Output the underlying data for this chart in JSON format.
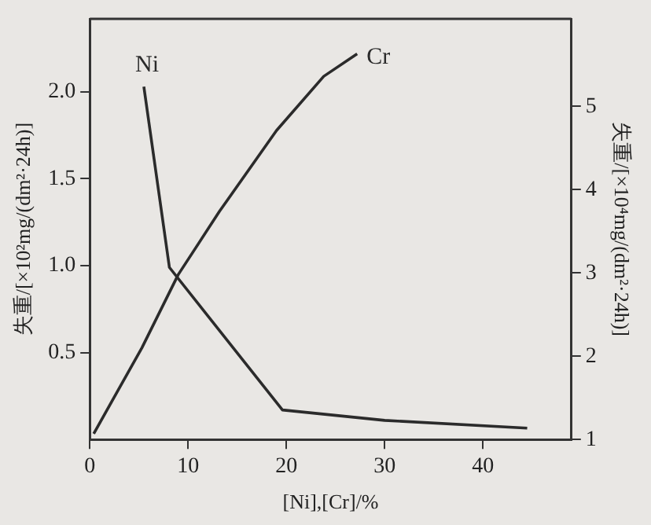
{
  "chart_data": {
    "type": "line",
    "xlabel": "[Ni],[Cr]/%",
    "ylabel": "失重/[×10²mg/(dm²·24h)]",
    "y2label": "失重/[×10⁴mg/(dm²·24h)]",
    "series": [
      {
        "name": "Ni",
        "color": "#2b2b2b",
        "x": [
          5.5,
          8.1,
          19.6,
          30,
          44.5
        ],
        "values": [
          2.03,
          0.99,
          0.17,
          0.11,
          0.065
        ]
      },
      {
        "name": "Cr",
        "color": "#2b2b2b",
        "axis": "y2",
        "x": [
          0.4,
          5.3,
          9,
          13.2,
          19,
          23.8,
          27.2
        ],
        "values": [
          1.07,
          2.1,
          2.98,
          3.74,
          4.71,
          5.36,
          5.63
        ]
      }
    ],
    "xlim": [
      0,
      49
    ],
    "xticks": [
      0,
      10,
      20,
      30,
      40
    ],
    "ylim": [
      0,
      2.42
    ],
    "yticks": [
      {
        "value": 0.5,
        "label": "0.5"
      },
      {
        "value": 1,
        "label": "1.0"
      },
      {
        "value": 1.5,
        "label": "1.5"
      },
      {
        "value": 2,
        "label": "2.0"
      }
    ],
    "y2lim": [
      1,
      6.05
    ],
    "y2ticks": [
      1,
      2,
      3,
      4,
      5
    ],
    "grid": false,
    "legend": false,
    "marker": "none",
    "line_style": "solid"
  }
}
